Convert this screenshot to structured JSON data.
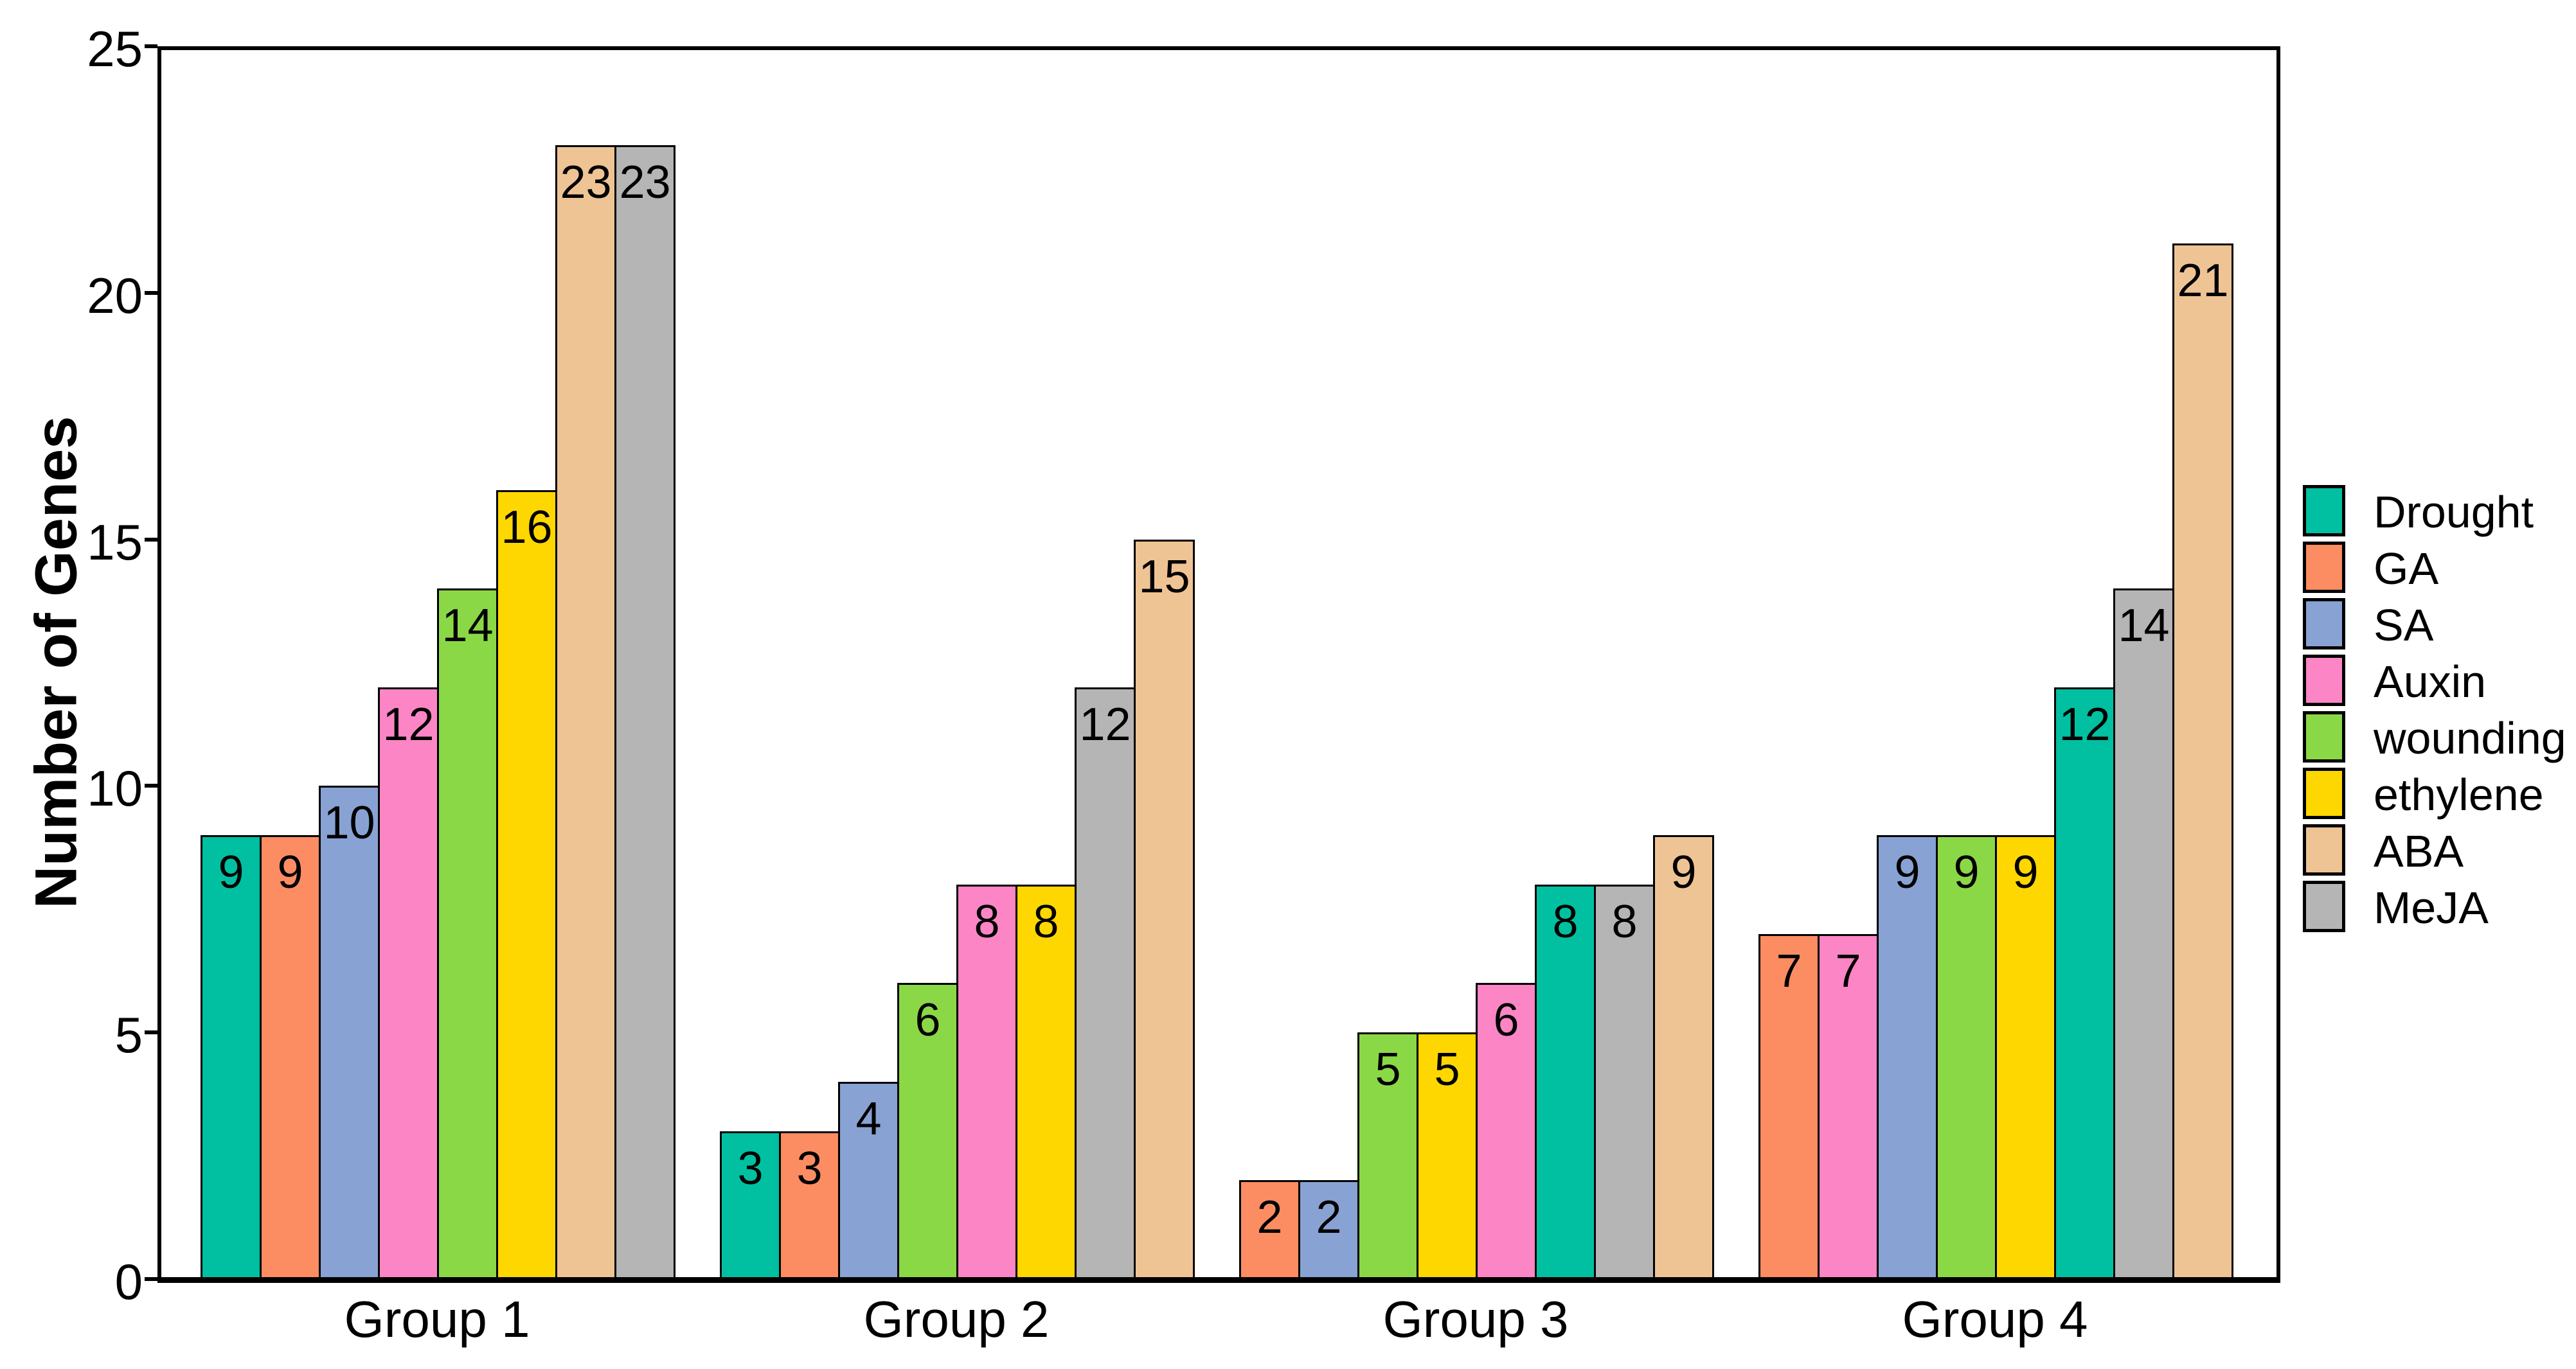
{
  "chart_data": {
    "type": "bar",
    "title": "",
    "xlabel": "",
    "ylabel": "Number of Genes",
    "ylim": [
      0,
      25
    ],
    "yticks": [
      0,
      5,
      10,
      15,
      20,
      25
    ],
    "categories": [
      "Group 1",
      "Group 2",
      "Group 3",
      "Group 4"
    ],
    "grid": false,
    "legend_position": "right-outside",
    "bar_value_labels": true,
    "bar_edge_color": "#000000",
    "series": [
      {
        "name": "Drought",
        "color": "#00C0A1",
        "values": [
          9,
          3,
          8,
          12
        ]
      },
      {
        "name": "GA",
        "color": "#FC8D62",
        "values": [
          9,
          3,
          2,
          7
        ]
      },
      {
        "name": "SA",
        "color": "#88A2D3",
        "values": [
          10,
          4,
          2,
          9
        ]
      },
      {
        "name": "Auxin",
        "color": "#FB85C5",
        "values": [
          12,
          8,
          6,
          7
        ]
      },
      {
        "name": "wounding",
        "color": "#8BD847",
        "values": [
          14,
          6,
          5,
          9
        ]
      },
      {
        "name": "ethylene",
        "color": "#FFD700",
        "values": [
          16,
          8,
          5,
          9
        ]
      },
      {
        "name": "ABA",
        "color": "#EFC495",
        "values": [
          23,
          15,
          9,
          21
        ]
      },
      {
        "name": "MeJA",
        "color": "#B5B5B5",
        "values": [
          23,
          12,
          8,
          14
        ]
      }
    ],
    "bar_order_per_category": [
      [
        "Drought",
        "GA",
        "SA",
        "Auxin",
        "wounding",
        "ethylene",
        "ABA",
        "MeJA"
      ],
      [
        "Drought",
        "GA",
        "SA",
        "wounding",
        "Auxin",
        "ethylene",
        "MeJA",
        "ABA"
      ],
      [
        "GA",
        "SA",
        "wounding",
        "ethylene",
        "Auxin",
        "Drought",
        "MeJA",
        "ABA"
      ],
      [
        "GA",
        "Auxin",
        "SA",
        "wounding",
        "ethylene",
        "Drought",
        "MeJA",
        "ABA"
      ]
    ]
  }
}
